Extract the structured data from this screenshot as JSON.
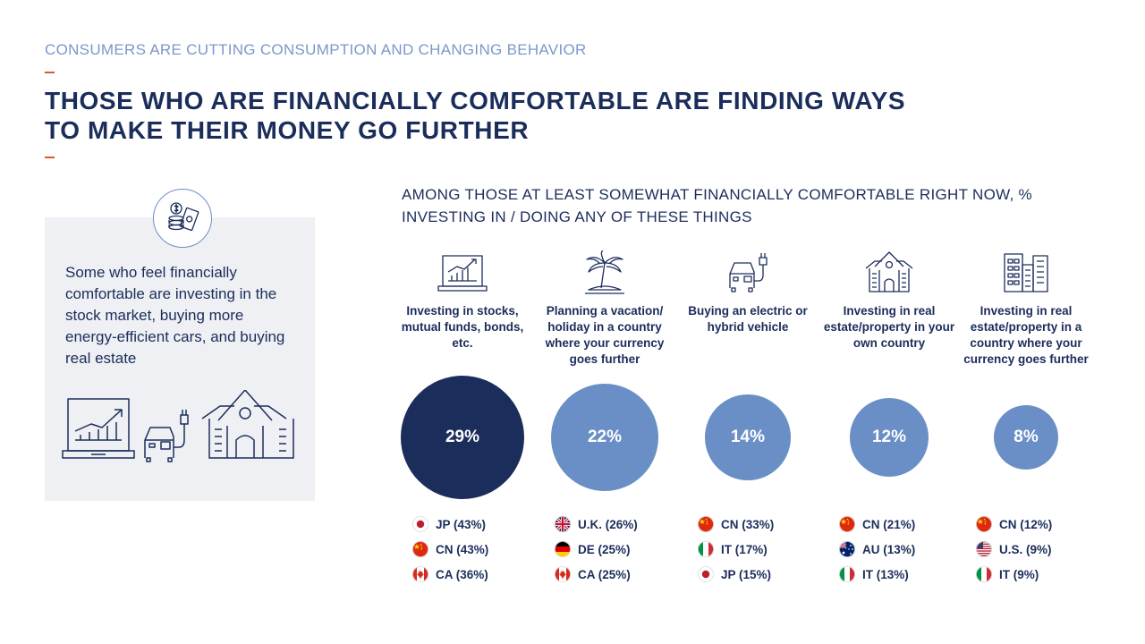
{
  "header": {
    "kicker": "CONSUMERS ARE CUTTING CONSUMPTION AND CHANGING BEHAVIOR",
    "title_line1": "THOSE WHO ARE FINANCIALLY COMFORTABLE ARE FINDING WAYS",
    "title_line2": "TO MAKE THEIR MONEY GO FURTHER"
  },
  "side_panel": {
    "icon": "money-coins-icon",
    "text": "Some who feel financially comfortable are investing in the stock market, buying more energy-efficient cars, and buying real estate",
    "illustration_icons": [
      "laptop-chart-icon",
      "electric-car-icon",
      "house-icon"
    ]
  },
  "colors": {
    "navy": "#1b2d5b",
    "bubble_dark": "#1b2d5b",
    "bubble_light": "#6a8fc6",
    "accent_dash": "#e0562b",
    "kicker": "#7b98c9",
    "panel_bg": "#eef0f3"
  },
  "chart_data": {
    "type": "bubble",
    "title": "AMONG THOSE AT LEAST SOMEWHAT FINANCIALLY COMFORTABLE RIGHT NOW, % INVESTING IN / DOING ANY OF THESE THINGS",
    "categories": [
      {
        "label": "Investing in stocks, mutual funds, bonds, etc.",
        "icon": "stock-chart-laptop-icon",
        "value": 29,
        "value_label": "29%",
        "color": "#1b2d5b",
        "top_countries": [
          {
            "flag": "JP",
            "label": "JP (43%)",
            "value": 43
          },
          {
            "flag": "CN",
            "label": "CN (43%)",
            "value": 43
          },
          {
            "flag": "CA",
            "label": "CA (36%)",
            "value": 36
          }
        ]
      },
      {
        "label": "Planning a vacation/ holiday in a country where your currency goes further",
        "icon": "palm-tree-island-icon",
        "value": 22,
        "value_label": "22%",
        "color": "#6a8fc6",
        "top_countries": [
          {
            "flag": "UK",
            "label": "U.K. (26%)",
            "value": 26
          },
          {
            "flag": "DE",
            "label": "DE (25%)",
            "value": 25
          },
          {
            "flag": "CA",
            "label": "CA (25%)",
            "value": 25
          }
        ]
      },
      {
        "label": "Buying an electric or hybrid vehicle",
        "icon": "electric-car-plug-icon",
        "value": 14,
        "value_label": "14%",
        "color": "#6a8fc6",
        "top_countries": [
          {
            "flag": "CN",
            "label": "CN (33%)",
            "value": 33
          },
          {
            "flag": "IT",
            "label": "IT (17%)",
            "value": 17
          },
          {
            "flag": "JP",
            "label": "JP (15%)",
            "value": 15
          }
        ]
      },
      {
        "label": "Investing in real estate/property in your own country",
        "icon": "house-icon",
        "value": 12,
        "value_label": "12%",
        "color": "#6a8fc6",
        "top_countries": [
          {
            "flag": "CN",
            "label": "CN (21%)",
            "value": 21
          },
          {
            "flag": "AU",
            "label": "AU (13%)",
            "value": 13
          },
          {
            "flag": "IT",
            "label": "IT (13%)",
            "value": 13
          }
        ]
      },
      {
        "label": "Investing in real estate/property in a country where your currency goes further",
        "icon": "apartment-buildings-icon",
        "value": 8,
        "value_label": "8%",
        "color": "#6a8fc6",
        "top_countries": [
          {
            "flag": "CN",
            "label": "CN (12%)",
            "value": 12
          },
          {
            "flag": "US",
            "label": "U.S. (9%)",
            "value": 9
          },
          {
            "flag": "IT",
            "label": "IT (9%)",
            "value": 9
          }
        ]
      }
    ]
  }
}
